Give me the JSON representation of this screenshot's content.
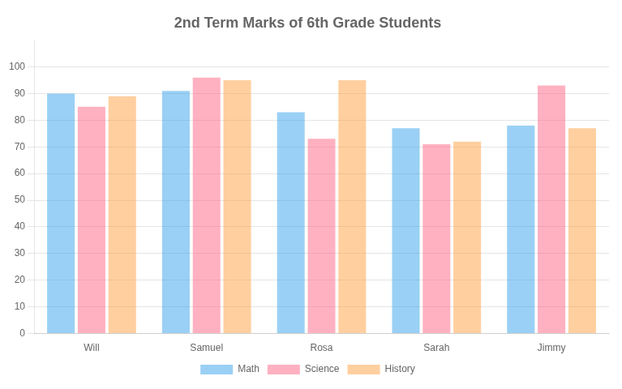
{
  "chart_data": {
    "type": "bar",
    "title": "2nd Term Marks of 6th Grade Students",
    "categories": [
      "Will",
      "Samuel",
      "Rosa",
      "Sarah",
      "Jimmy"
    ],
    "series": [
      {
        "name": "Math",
        "values": [
          90,
          91,
          83,
          77,
          78
        ]
      },
      {
        "name": "Science",
        "values": [
          85,
          96,
          73,
          71,
          93
        ]
      },
      {
        "name": "History",
        "values": [
          89,
          95,
          95,
          72,
          77
        ]
      }
    ],
    "ylim": [
      0,
      110
    ],
    "yticks": [
      0,
      10,
      20,
      30,
      40,
      50,
      60,
      70,
      80,
      90,
      100
    ],
    "grid": true,
    "legend": "bottom"
  }
}
